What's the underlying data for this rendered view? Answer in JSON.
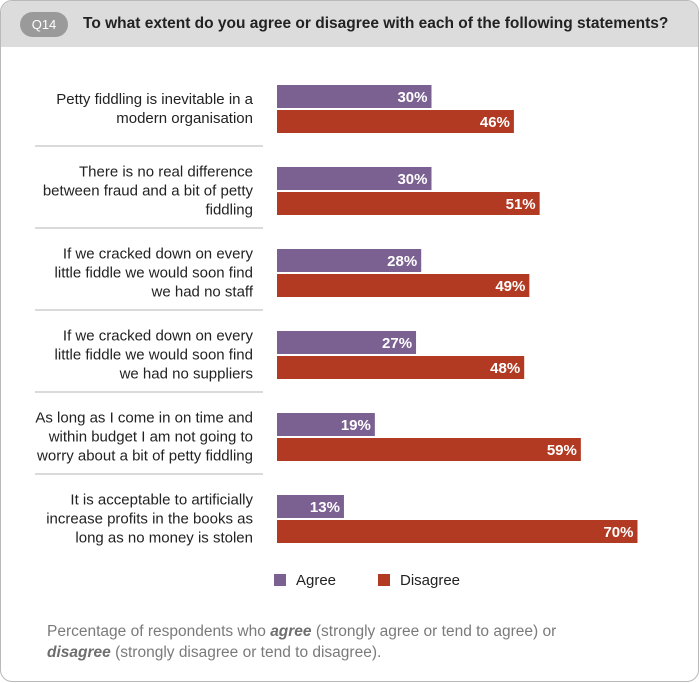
{
  "header": {
    "badge": "Q14",
    "question": "To what extent do you agree or disagree with each of the following statements?"
  },
  "colors": {
    "agree": "#7b6191",
    "disagree": "#b23a22",
    "header_bg": "#dcdcdc",
    "badge_bg": "#9a9a9a"
  },
  "chart_data": {
    "type": "bar",
    "orientation": "horizontal",
    "categories": [
      [
        "Petty fiddling is inevitable in a",
        "modern organisation"
      ],
      [
        "There is no real difference",
        "between fraud and a bit of petty",
        "fiddling"
      ],
      [
        "If we cracked down on every",
        "little fiddle we would soon find",
        "we had no staff"
      ],
      [
        "If we cracked down on every",
        "little fiddle we would soon find",
        "we had no suppliers"
      ],
      [
        "As long as I come in on time and",
        "within budget I am not going to",
        "worry about a bit of petty fiddling"
      ],
      [
        "It is acceptable to artificially",
        "increase profits in the books as",
        "long as no money is stolen"
      ]
    ],
    "series": [
      {
        "name": "Agree",
        "color": "#7b6191",
        "values": [
          30,
          30,
          28,
          27,
          19,
          13
        ],
        "labels": [
          "30%",
          "30%",
          "28%",
          "27%",
          "19%",
          "13%"
        ]
      },
      {
        "name": "Disagree",
        "color": "#b23a22",
        "values": [
          46,
          51,
          49,
          48,
          59,
          70
        ],
        "labels": [
          "46%",
          "51%",
          "49%",
          "48%",
          "59%",
          "70%"
        ]
      }
    ],
    "xlim": [
      0,
      100
    ],
    "grid": false,
    "legend_position": "bottom"
  },
  "note": {
    "part1": "Percentage of respondents who ",
    "agree_word": "agree",
    "part2": " (strongly agree or tend to agree) or",
    "disagree_word": "disagree",
    "part3": " (strongly disagree or tend to disagree)."
  }
}
